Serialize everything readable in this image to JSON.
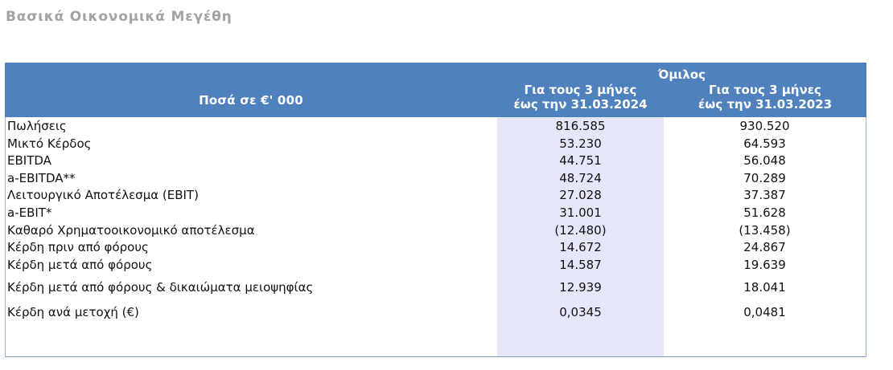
{
  "page": {
    "title": "Βασικά Οικονομικά Μεγέθη"
  },
  "table": {
    "amount_header": "Ποσά  σε €' 000",
    "group_header": "Όμιλος",
    "columns": [
      {
        "line1": "Για τους 3 μήνες",
        "line2": "έως την 31.03.2024"
      },
      {
        "line1": "Για τους 3 μήνες",
        "line2": "έως την 31.03.2023"
      }
    ],
    "highlight_color": "#e6e6fa",
    "header_color": "#4f81bd",
    "rows": [
      {
        "label": "Πωλήσεις",
        "v2024": "816.585",
        "v2023": "930.520"
      },
      {
        "label": "Μικτό Κέρδος",
        "v2024": "53.230",
        "v2023": "64.593"
      },
      {
        "label": "EBITDA",
        "v2024": "44.751",
        "v2023": "56.048"
      },
      {
        "label": "a-EBITDA**",
        "v2024": "48.724",
        "v2023": "70.289"
      },
      {
        "label": "Λειτουργικό Αποτέλεσμα (EBIT)",
        "v2024": "27.028",
        "v2023": "37.387"
      },
      {
        "label": "a-EBIT*",
        "v2024": "31.001",
        "v2023": "51.628"
      },
      {
        "label": "Καθαρό Χρηματοοικονομικό αποτέλεσμα",
        "v2024": "(12.480)",
        "v2023": "(13.458)"
      },
      {
        "label": "Κέρδη πριν από φόρους",
        "v2024": "14.672",
        "v2023": "24.867"
      },
      {
        "label": "Κέρδη μετά από φόρους",
        "v2024": "14.587",
        "v2023": "19.639"
      },
      {
        "label": "Κέρδη μετά από φόρους & δικαιώματα μειοψηφίας",
        "v2024": "12.939",
        "v2023": "18.041"
      },
      {
        "label": "Κέρδη ανά μετοχή (€)",
        "v2024": "0,0345",
        "v2023": "0,0481"
      }
    ]
  }
}
